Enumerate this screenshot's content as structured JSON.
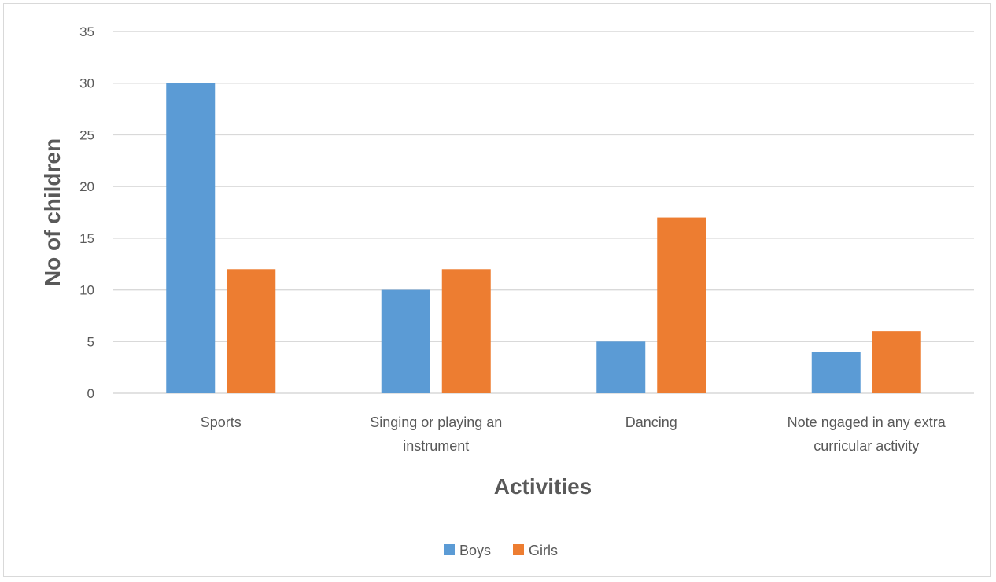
{
  "chart_data": {
    "type": "bar",
    "title": "",
    "xlabel": "Activities",
    "ylabel": "No of children",
    "categories": [
      [
        "Sports"
      ],
      [
        "Singing or playing an",
        "instrument"
      ],
      [
        "Dancing"
      ],
      [
        "Note ngaged in any extra",
        "curricular activity"
      ]
    ],
    "series": [
      {
        "name": "Boys",
        "values": [
          30,
          10,
          5,
          4
        ],
        "color": "#5b9bd5"
      },
      {
        "name": "Girls",
        "values": [
          12,
          12,
          17,
          6
        ],
        "color": "#ed7d31"
      }
    ],
    "ylim": [
      0,
      35
    ],
    "yticks": [
      0,
      5,
      10,
      15,
      20,
      25,
      30,
      35
    ],
    "grid": true,
    "legend_position": "bottom"
  }
}
